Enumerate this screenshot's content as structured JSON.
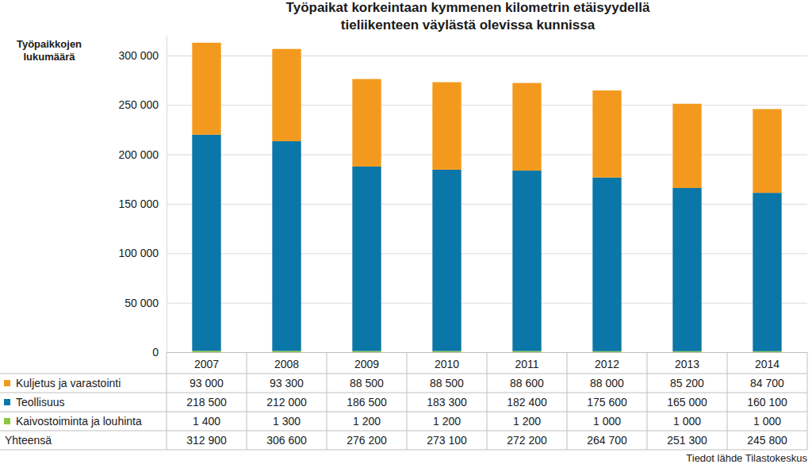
{
  "chart_data": {
    "type": "bar",
    "title": "Työpaikat korkeintaan kymmenen kilometrin etäisyydellä tieliikenteen väylästä olevissa kunnissa",
    "y_label": "Työpaikkojen lukumäärä",
    "source": "Tiedot lähde Tilastokeskus",
    "stacked": true,
    "grid": true,
    "categories": [
      "2007",
      "2008",
      "2009",
      "2010",
      "2011",
      "2012",
      "2013",
      "2014"
    ],
    "series": [
      {
        "name": "Kaivostoiminta ja louhinta",
        "color": "#8dc63f",
        "values": [
          1400,
          1300,
          1200,
          1200,
          1200,
          1000,
          1000,
          1000
        ],
        "value_labels": [
          "1 400",
          "1 300",
          "1 200",
          "1 200",
          "1 200",
          "1 000",
          "1 000",
          "1 000"
        ]
      },
      {
        "name": "Teollisuus",
        "color": "#0b76a8",
        "values": [
          218500,
          212000,
          186500,
          183300,
          182400,
          175600,
          165000,
          160100
        ],
        "value_labels": [
          "218 500",
          "212 000",
          "186 500",
          "183 300",
          "182 400",
          "175 600",
          "165 000",
          "160 100"
        ]
      },
      {
        "name": "Kuljetus ja varastointi",
        "color": "#f39a1e",
        "values": [
          93000,
          93300,
          88500,
          88500,
          88600,
          88000,
          85200,
          84700
        ],
        "value_labels": [
          "93 000",
          "93 300",
          "88 500",
          "88 500",
          "88 600",
          "88 000",
          "85 200",
          "84 700"
        ]
      }
    ],
    "total": {
      "name": "Yhteensä",
      "values": [
        312900,
        306600,
        276200,
        273100,
        272200,
        264700,
        251300,
        245800
      ],
      "value_labels": [
        "312 900",
        "306 600",
        "276 200",
        "273 100",
        "272 200",
        "264 700",
        "251 300",
        "245 800"
      ]
    },
    "ylim": [
      0,
      320000
    ],
    "yticks": [
      0,
      {
        "value": 50000,
        "label": "50 000"
      },
      {
        "value": 100000,
        "label": "100 000"
      },
      {
        "value": 150000,
        "label": "150 000"
      },
      {
        "value": 200000,
        "label": "200 000"
      },
      {
        "value": 250000,
        "label": "250 000"
      },
      {
        "value": 300000,
        "label": "300 000"
      }
    ]
  }
}
